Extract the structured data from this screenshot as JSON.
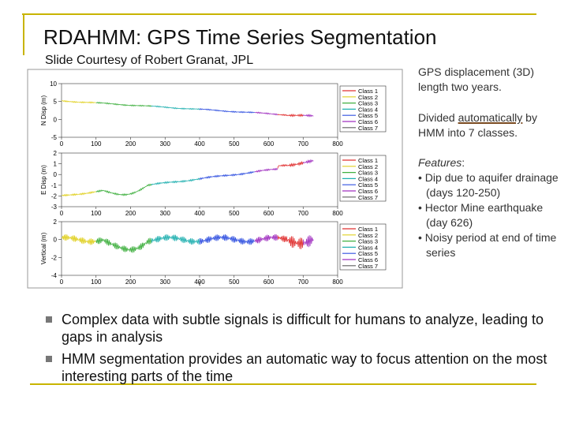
{
  "title": "RDAHMM: GPS Time Series Segmentation",
  "subtitle": "Slide Courtesy of Robert Granat, JPL",
  "figure": {
    "xlabel": "t",
    "xticks": [
      "0",
      "100",
      "200",
      "300",
      "400",
      "500",
      "600",
      "700",
      "800"
    ],
    "legend": [
      {
        "label": "Class 1",
        "color": "#e03030"
      },
      {
        "label": "Class 2",
        "color": "#e0d020"
      },
      {
        "label": "Class 3",
        "color": "#40b040"
      },
      {
        "label": "Class 4",
        "color": "#20b0b0"
      },
      {
        "label": "Class 5",
        "color": "#3050e0"
      },
      {
        "label": "Class 6",
        "color": "#a030c0"
      },
      {
        "label": "Class 7",
        "color": "#606060"
      }
    ],
    "panels": [
      {
        "ylabel": "N Disp (m)",
        "yticks": [
          "10",
          "5",
          "0",
          "-5"
        ]
      },
      {
        "ylabel": "E Disp (m)",
        "yticks": [
          "2",
          "1",
          "0",
          "-1",
          "-2",
          "-3"
        ]
      },
      {
        "ylabel": "Vertical (m)",
        "yticks": [
          "2",
          "0",
          "-2",
          "-4"
        ]
      }
    ]
  },
  "side": {
    "p1": "GPS displacement (3D) length two years.",
    "p2a": "Divided ",
    "p2b": "automatically",
    "p2c": " by HMM into 7 classes.",
    "features_label": "Features",
    "features_colon": ":",
    "features": [
      "Dip due to aquifer drainage (days 120-250)",
      "Hector Mine earthquake (day 626)",
      "Noisy period at end of time series"
    ]
  },
  "bullets": [
    "Complex data with subtle signals is difficult for humans to analyze, leading to gaps in analysis",
    "HMM segmentation provides an automatic way to focus attention on the most interesting parts of the time"
  ]
}
